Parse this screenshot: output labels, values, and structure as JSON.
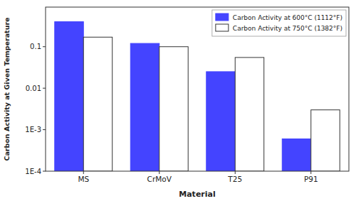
{
  "chart_data": {
    "type": "bar",
    "categories": [
      "MS",
      "CrMoV",
      "T25",
      "P91"
    ],
    "series": [
      {
        "name": "Carbon Activity at 600°C (1112°F)",
        "color": "#4444ff",
        "values": [
          0.4,
          0.12,
          0.025,
          0.0006
        ]
      },
      {
        "name": "Carbon Activity at 750°C (1382°F)",
        "color": "#ffffff",
        "values": [
          0.17,
          0.1,
          0.055,
          0.003
        ]
      }
    ],
    "xlabel": "Material",
    "ylabel": "Carbon Activity at Given Temperature",
    "log": "y",
    "ylim": [
      0.0001,
      0.9
    ],
    "yticks": [
      {
        "value": 0.0001,
        "label": "1E-4"
      },
      {
        "value": 0.001,
        "label": "1E-3"
      },
      0.01,
      0.1
    ],
    "legend": "top-right",
    "grid": false
  }
}
